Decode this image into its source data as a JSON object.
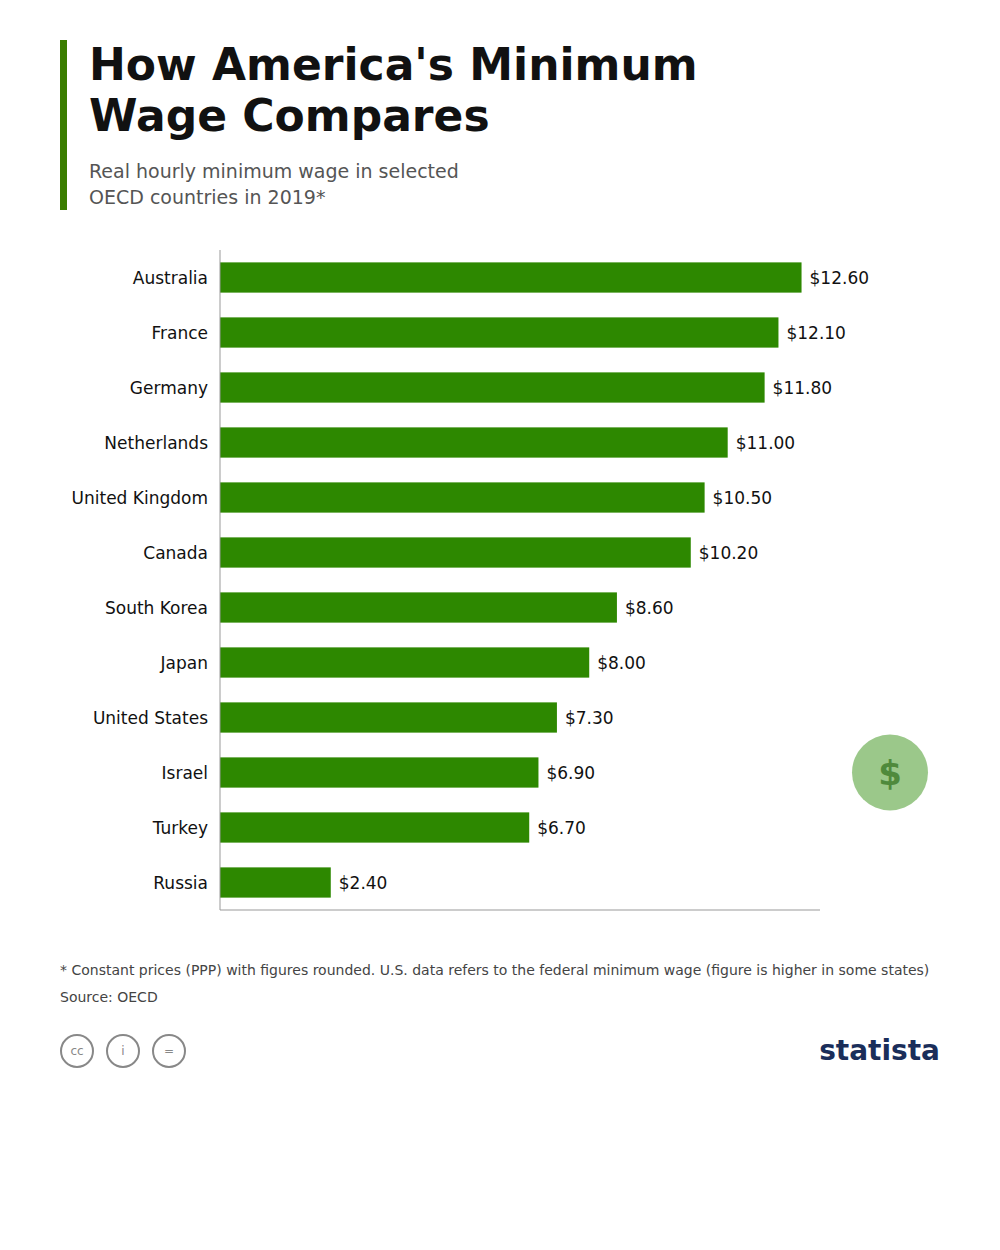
{
  "chart_data": {
    "type": "bar",
    "orientation": "horizontal",
    "title": "How America's Minimum Wage Compares",
    "subtitle": "Real hourly minimum wage in selected OECD countries in 2019*",
    "categories": [
      "Australia",
      "France",
      "Germany",
      "Netherlands",
      "United Kingdom",
      "Canada",
      "South Korea",
      "Japan",
      "United States",
      "Israel",
      "Turkey",
      "Russia"
    ],
    "values": [
      12.6,
      12.1,
      11.8,
      11.0,
      10.5,
      10.2,
      8.6,
      8.0,
      7.3,
      6.9,
      6.7,
      2.4
    ],
    "value_labels": [
      "$12.60",
      "$12.10",
      "$11.80",
      "$11.00",
      "$10.50",
      "$10.20",
      "$8.60",
      "$8.00",
      "$7.30",
      "$6.90",
      "$6.70",
      "$2.40"
    ],
    "data_labels": true,
    "color": "#2d8800",
    "xlim": [
      0,
      13.0
    ],
    "tick_labels": false,
    "grid": false,
    "annotations": [
      "* Constant prices (PPP) with figures rounded. U.S. data refers to the federal minimum wage (figure is higher in some states)",
      "Source: OECD",
      "statista",
      "cc",
      "i",
      "=",
      "$"
    ]
  }
}
